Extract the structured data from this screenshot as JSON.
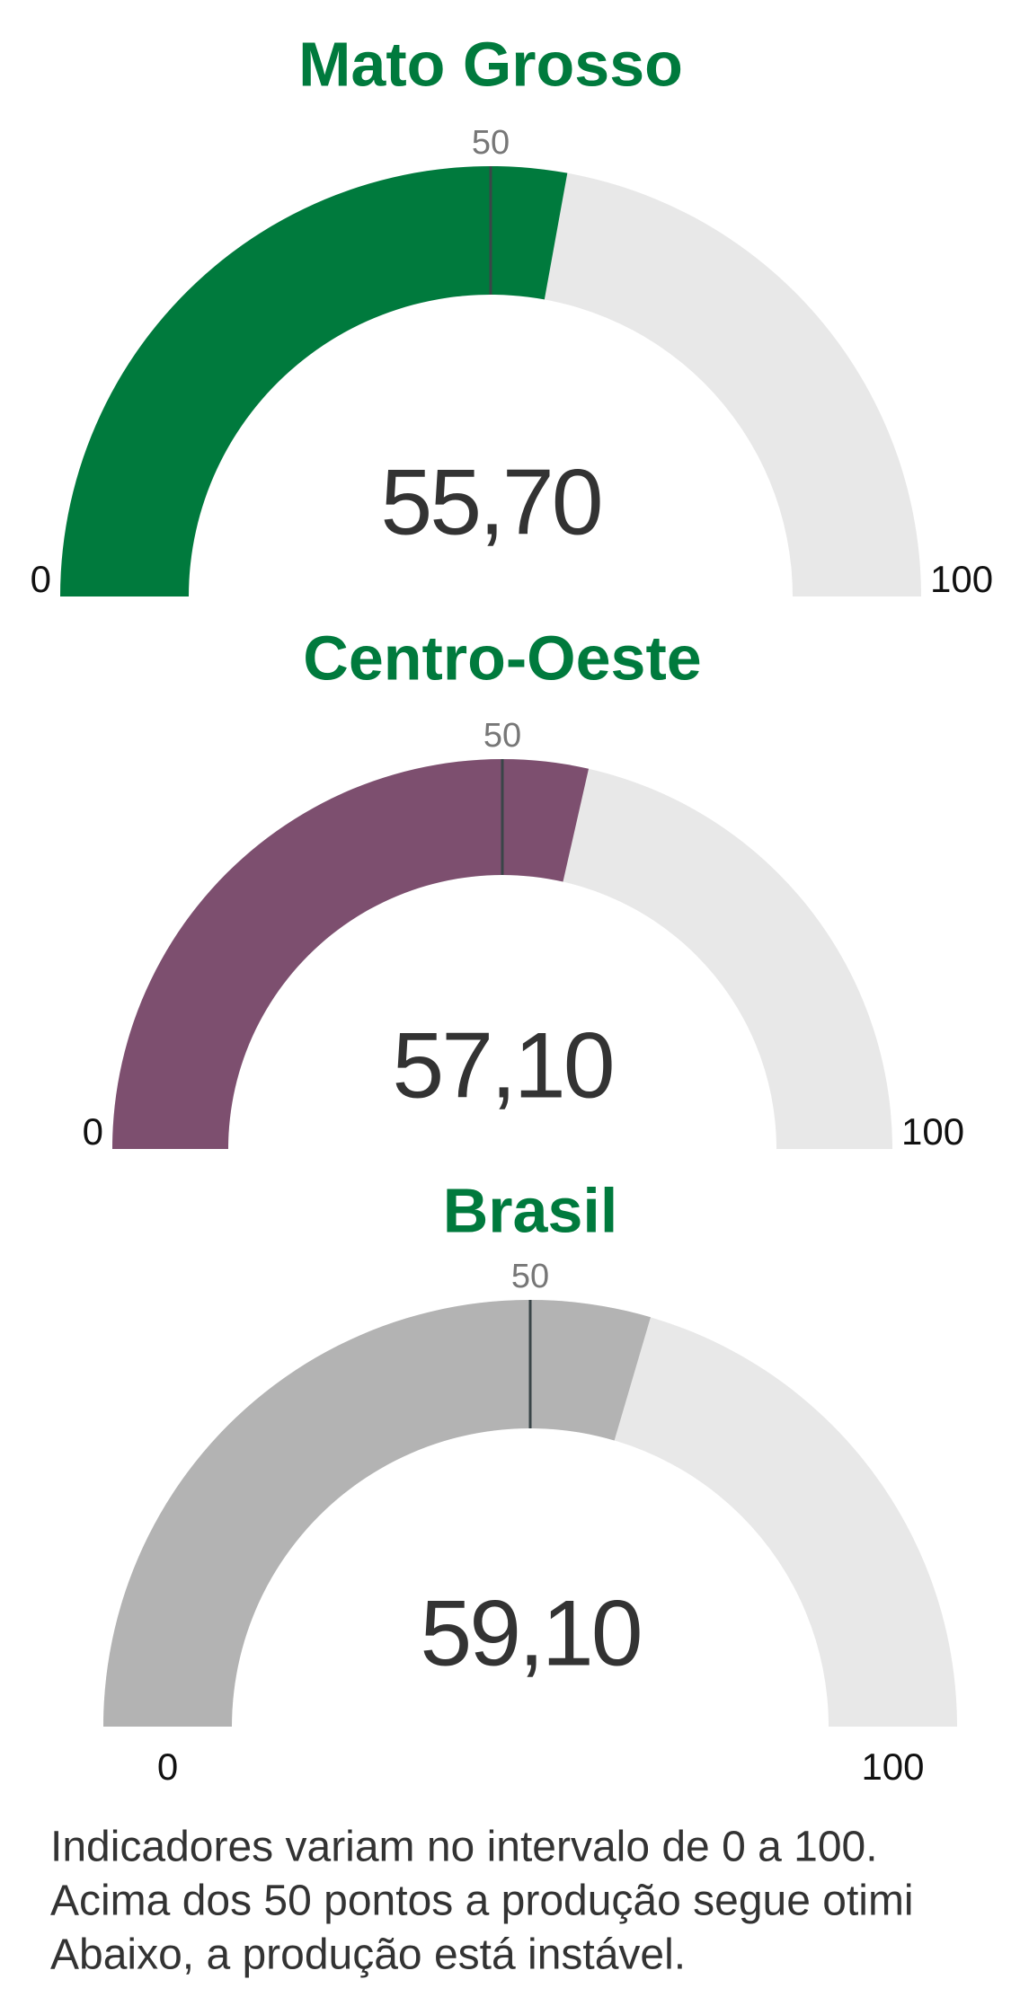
{
  "chart_data": [
    {
      "type": "gauge",
      "title": "Mato Grosso",
      "value": 55.7,
      "value_label": "55,70",
      "color": "#007a3d",
      "ylim": [
        0,
        100
      ],
      "yticks": [
        0,
        50,
        100
      ]
    },
    {
      "type": "gauge",
      "title": "Centro-Oeste",
      "value": 57.1,
      "value_label": "57,10",
      "color": "#7d4f6f",
      "ylim": [
        0,
        100
      ],
      "yticks": [
        0,
        50,
        100
      ]
    },
    {
      "type": "gauge",
      "title": "Brasil",
      "value": 59.1,
      "value_label": "59,10",
      "color": "#b3b3b3",
      "ylim": [
        0,
        100
      ],
      "yticks": [
        0,
        50,
        100
      ]
    }
  ],
  "footer": {
    "lines": [
      "Indicadores variam no intervalo de 0 a 100.",
      "Acima dos 50 pontos a produção segue otimi",
      "Abaixo, a produção está instável."
    ]
  }
}
